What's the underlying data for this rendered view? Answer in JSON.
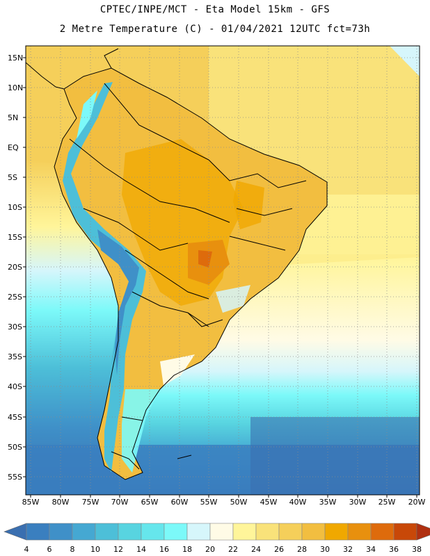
{
  "header": {
    "title_line1": "CPTEC/INPE/MCT -  Eta Model 15km - GFS",
    "title_line2": "2 Metre Temperature (C) - 01/04/2021 12UTC fct=73h"
  },
  "map": {
    "lat_labels": [
      "15N",
      "10N",
      "5N",
      "EQ",
      "5S",
      "10S",
      "15S",
      "20S",
      "25S",
      "30S",
      "35S",
      "40S",
      "45S",
      "50S",
      "55S"
    ],
    "lon_labels": [
      "85W",
      "80W",
      "75W",
      "70W",
      "65W",
      "60W",
      "55W",
      "50W",
      "45W",
      "40W",
      "35W",
      "30W",
      "25W",
      "20W"
    ]
  },
  "colorbar": {
    "unit": "C",
    "levels": [
      "4",
      "6",
      "8",
      "10",
      "12",
      "14",
      "16",
      "18",
      "20",
      "22",
      "24",
      "26",
      "28",
      "30",
      "32",
      "34",
      "36",
      "38"
    ],
    "colors": [
      "#3a6fb0",
      "#3a7fbf",
      "#3f90c8",
      "#45a8d2",
      "#4dbfd8",
      "#58d4e0",
      "#66e6ec",
      "#7cf9f9",
      "#d6f6fb",
      "#fffbe6",
      "#fff59a",
      "#f9e27a",
      "#f5cf5a",
      "#f2be40",
      "#f0a800",
      "#e8900e",
      "#de6b0c",
      "#c84808",
      "#b03010"
    ]
  }
}
